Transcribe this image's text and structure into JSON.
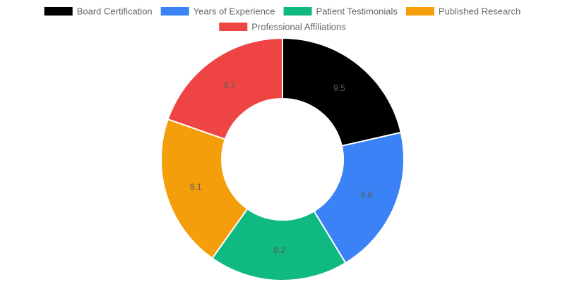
{
  "chart_data": {
    "type": "doughnut",
    "title": "",
    "legend_position": "top",
    "categories": [
      "Board Certification",
      "Years of Experience",
      "Patient Testimonials",
      "Published Research",
      "Professional Affiliations"
    ],
    "values": [
      9.5,
      8.8,
      8.2,
      9.1,
      8.7
    ],
    "colors": [
      "#000000",
      "#3b82f6",
      "#10b981",
      "#f59e0b",
      "#ef4444"
    ],
    "show_value_labels": true
  }
}
